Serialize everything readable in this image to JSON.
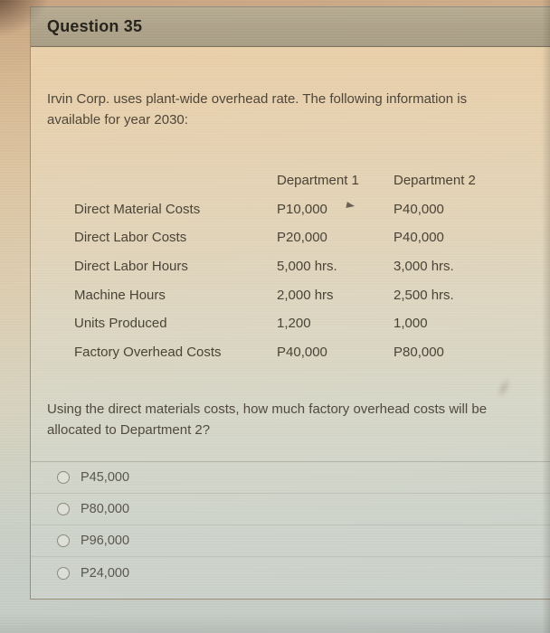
{
  "header": {
    "title": "Question 35"
  },
  "intro": {
    "lines": [
      "Irvin Corp. uses plant-wide overhead rate. The following information is",
      "available for year 2030:"
    ]
  },
  "table": {
    "col_headers": [
      "Department 1",
      "Department 2"
    ],
    "rows": [
      {
        "label": "Direct Material Costs",
        "dept1": "P10,000",
        "dept2": "P40,000"
      },
      {
        "label": "Direct Labor Costs",
        "dept1": "P20,000",
        "dept2": "P40,000"
      },
      {
        "label": "Direct Labor Hours",
        "dept1": "5,000 hrs.",
        "dept2": "3,000 hrs."
      },
      {
        "label": "Machine Hours",
        "dept1": "2,000 hrs",
        "dept2": "2,500 hrs."
      },
      {
        "label": "Units Produced",
        "dept1": "1,200",
        "dept2": "1,000"
      },
      {
        "label": "Factory Overhead Costs",
        "dept1": "P40,000",
        "dept2": "P80,000"
      }
    ]
  },
  "prompt": {
    "lines": [
      "Using the direct materials costs, how much factory overhead costs will be",
      "allocated to Department 2?"
    ]
  },
  "options": [
    {
      "label": "P45,000"
    },
    {
      "label": "P80,000"
    },
    {
      "label": "P96,000"
    },
    {
      "label": "P24,000"
    }
  ],
  "colors": {
    "header_bar": "#ada288",
    "card_top": "#ecd2ab",
    "card_bottom": "#cbd1cb",
    "body_text": "#4a4234"
  }
}
